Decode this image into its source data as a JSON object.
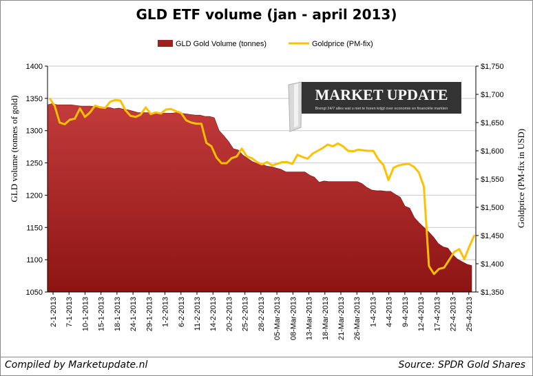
{
  "footer": {
    "compiled_by": "Compiled by Marketupdate.nl",
    "source": "Source: SPDR Gold Shares"
  },
  "watermark": {
    "title": "MARKET UPDATE",
    "tagline": "Brengt 24/7 alles wat u niet te horen krijgt over economie en financiële markten"
  },
  "colors": {
    "volume_fill": "#a11f1f",
    "gold_line": "#ffc000"
  },
  "chart_data": {
    "type": "area",
    "title": "GLD ETF volume (jan - april 2013)",
    "ylabel": "GLD volume (tonnes of gold)",
    "y2label": "Goldprice (PM-fix in USD)",
    "legend_position": "top",
    "ylim": [
      1050,
      1400
    ],
    "y2lim": [
      1350,
      1750
    ],
    "yticks": [
      "1050",
      "1100",
      "1150",
      "1200",
      "1250",
      "1300",
      "1350",
      "1400"
    ],
    "y2ticks": [
      "$1,350",
      "$1,400",
      "$1,450",
      "$1,500",
      "$1,550",
      "$1,600",
      "$1,650",
      "$1,700",
      "$1,750"
    ],
    "xtick_labels": [
      "2-1-2013",
      "7-1-2013",
      "10-1-2013",
      "15-1-2013",
      "18-1-2013",
      "24-1-2013",
      "29-1-2013",
      "1-2-2013",
      "6-2-2013",
      "11-2-2013",
      "14-2-2013",
      "20-2-2013",
      "25-2-2013",
      "28-2-2013",
      "05-Mar-2013",
      "08-Mar-2013",
      "13-Mar-2013",
      "18-Mar-2013",
      "21-Mar-2013",
      "26-Mar-2013",
      "1-4-2013",
      "4-4-2013",
      "9-4-2013",
      "12-4-2013",
      "17-4-2013",
      "22-4-2013",
      "25-4-2013"
    ],
    "series": [
      {
        "name": "GLD Gold Volume (tonnes)",
        "type": "area",
        "axis": "left",
        "values": [
          1340,
          1342,
          1340,
          1340,
          1340,
          1340,
          1339,
          1338,
          1338,
          1338,
          1337,
          1336,
          1336,
          1336,
          1334,
          1335,
          1333,
          1332,
          1330,
          1328,
          1328,
          1328,
          1327,
          1328,
          1327,
          1327,
          1327,
          1328,
          1327,
          1326,
          1325,
          1324,
          1324,
          1322,
          1322,
          1320,
          1300,
          1292,
          1283,
          1272,
          1270,
          1262,
          1257,
          1252,
          1249,
          1248,
          1245,
          1244,
          1242,
          1240,
          1236,
          1236,
          1236,
          1236,
          1236,
          1231,
          1228,
          1220,
          1222,
          1221,
          1221,
          1221,
          1221,
          1221,
          1221,
          1221,
          1218,
          1212,
          1208,
          1207,
          1207,
          1206,
          1206,
          1201,
          1197,
          1183,
          1180,
          1165,
          1157,
          1150,
          1143,
          1135,
          1125,
          1120,
          1118,
          1108,
          1101,
          1097,
          1093,
          1091
        ]
      },
      {
        "name": "Goldprice (PM-fix)",
        "type": "line",
        "axis": "right",
        "values": [
          1693,
          1680,
          1650,
          1647,
          1655,
          1657,
          1675,
          1660,
          1668,
          1680,
          1677,
          1676,
          1687,
          1690,
          1689,
          1672,
          1662,
          1660,
          1664,
          1677,
          1665,
          1668,
          1666,
          1673,
          1674,
          1670,
          1667,
          1654,
          1650,
          1648,
          1648,
          1614,
          1608,
          1588,
          1578,
          1578,
          1587,
          1590,
          1604,
          1590,
          1587,
          1580,
          1576,
          1580,
          1574,
          1577,
          1580,
          1580,
          1577,
          1593,
          1589,
          1586,
          1595,
          1600,
          1605,
          1611,
          1608,
          1613,
          1608,
          1600,
          1599,
          1602,
          1601,
          1600,
          1600,
          1585,
          1575,
          1548,
          1570,
          1574,
          1576,
          1577,
          1572,
          1562,
          1537,
          1396,
          1382,
          1391,
          1393,
          1407,
          1421,
          1426,
          1408,
          1431,
          1451
        ]
      }
    ]
  }
}
